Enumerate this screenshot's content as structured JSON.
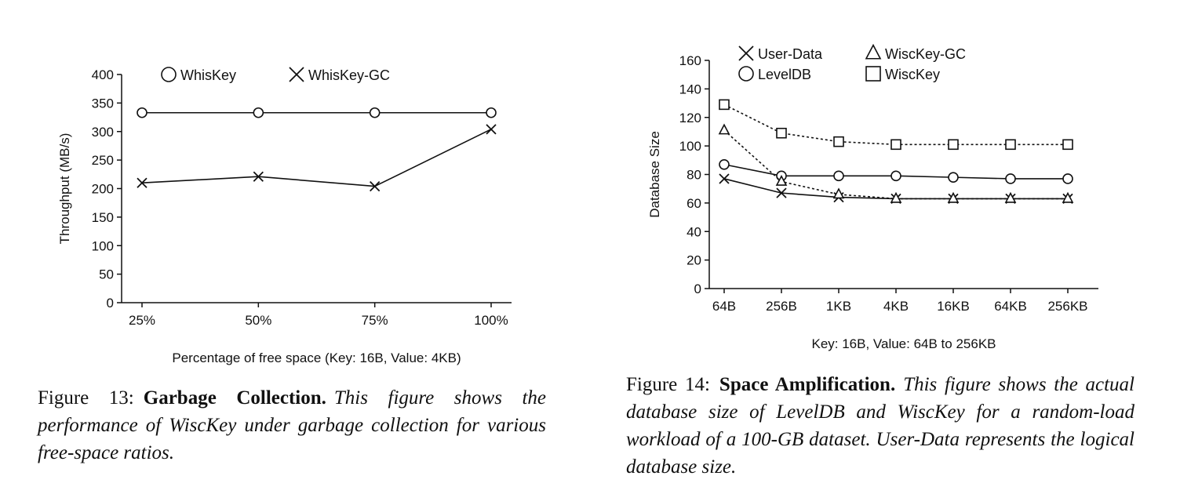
{
  "chart_data": [
    {
      "type": "line",
      "xlabel": "Percentage of free space (Key: 16B, Value: 4KB)",
      "ylabel": "Throughput (MB/s)",
      "categories": [
        "25%",
        "50%",
        "75%",
        "100%"
      ],
      "ylim": [
        0,
        400
      ],
      "yticks": [
        0,
        50,
        100,
        150,
        200,
        250,
        300,
        350,
        400
      ],
      "grid": false,
      "legend_position": "top-left",
      "series": [
        {
          "name": "WhisKey",
          "marker": "circle",
          "dash": "solid",
          "values": [
            333,
            333,
            333,
            333
          ]
        },
        {
          "name": "WhisKey-GC",
          "marker": "x",
          "dash": "solid",
          "values": [
            210,
            221,
            204,
            304
          ]
        }
      ]
    },
    {
      "type": "line",
      "xlabel": "Key: 16B, Value: 64B to 256KB",
      "ylabel": "Database Size",
      "categories": [
        "64B",
        "256B",
        "1KB",
        "4KB",
        "16KB",
        "64KB",
        "256KB"
      ],
      "ylim": [
        0,
        160
      ],
      "yticks": [
        0,
        20,
        40,
        60,
        80,
        100,
        120,
        140,
        160
      ],
      "grid": false,
      "legend_position": "top-left",
      "series": [
        {
          "name": "User-Data",
          "marker": "x",
          "dash": "solid",
          "values": [
            77,
            67,
            64,
            63,
            63,
            63,
            63
          ]
        },
        {
          "name": "LevelDB",
          "marker": "circle",
          "dash": "solid",
          "values": [
            87,
            79,
            79,
            79,
            78,
            77,
            77
          ]
        },
        {
          "name": "WiscKey-GC",
          "marker": "triangle",
          "dash": "dotted",
          "values": [
            111,
            75,
            66,
            63,
            63,
            63,
            63
          ]
        },
        {
          "name": "WiscKey",
          "marker": "square",
          "dash": "dotted",
          "values": [
            129,
            109,
            103,
            101,
            101,
            101,
            101
          ]
        }
      ]
    }
  ],
  "captions": {
    "fig13": {
      "number": "Figure 13:",
      "title": "Garbage Collection.",
      "text": "This figure shows the performance of WiscKey under garbage collection for various free-space ratios."
    },
    "fig14": {
      "number": "Figure 14:",
      "title": "Space Amplification.",
      "text": "This figure shows the actual database size of LevelDB and WiscKey for a random-load workload of a 100-GB dataset. User-Data represents the logical database size."
    }
  }
}
